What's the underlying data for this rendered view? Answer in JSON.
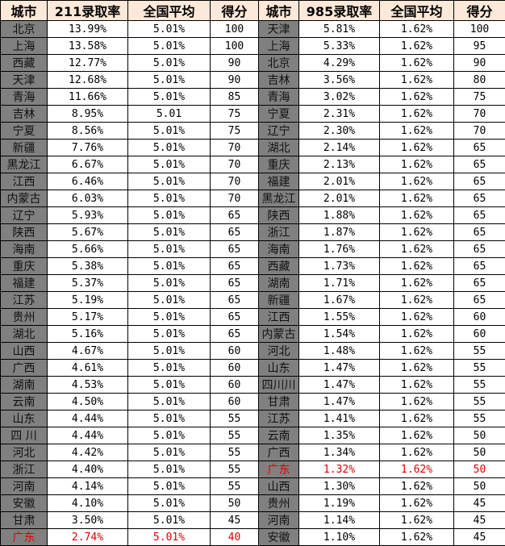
{
  "headers": [
    "城市",
    "211录取率",
    "全国平均",
    "得分",
    "城市",
    "985录取率",
    "全国平均",
    "得分"
  ],
  "highlight_color": "#e00000",
  "left": [
    [
      "北京",
      "13.99%",
      "5.01%",
      "100"
    ],
    [
      "上海",
      "13.58%",
      "5.01%",
      "100"
    ],
    [
      "西藏",
      "12.77%",
      "5.01%",
      "90"
    ],
    [
      "天津",
      "12.68%",
      "5.01%",
      "90"
    ],
    [
      "青海",
      "11.66%",
      "5.01%",
      "85"
    ],
    [
      "吉林",
      "8.95%",
      "5.01",
      "75"
    ],
    [
      "宁夏",
      "8.56%",
      "5.01%",
      "75"
    ],
    [
      "新疆",
      "7.76%",
      "5.01%",
      "70"
    ],
    [
      "黑龙江",
      "6.67%",
      "5.01%",
      "70"
    ],
    [
      "江西",
      "6.46%",
      "5.01%",
      "70"
    ],
    [
      "内蒙古",
      "6.03%",
      "5.01%",
      "70"
    ],
    [
      "辽宁",
      "5.93%",
      "5.01%",
      "65"
    ],
    [
      "陕西",
      "5.67%",
      "5.01%",
      "65"
    ],
    [
      "海南",
      "5.66%",
      "5.01%",
      "65"
    ],
    [
      "重庆",
      "5.38%",
      "5.01%",
      "65"
    ],
    [
      "福建",
      "5.37%",
      "5.01%",
      "65"
    ],
    [
      "江苏",
      "5.19%",
      "5.01%",
      "65"
    ],
    [
      "贵州",
      "5.17%",
      "5.01%",
      "65"
    ],
    [
      "湖北",
      "5.16%",
      "5.01%",
      "65"
    ],
    [
      "山西",
      "4.67%",
      "5.01%",
      "60"
    ],
    [
      "广西",
      "4.61%",
      "5.01%",
      "60"
    ],
    [
      "湖南",
      "4.53%",
      "5.01%",
      "60"
    ],
    [
      "云南",
      "4.50%",
      "5.01%",
      "60"
    ],
    [
      "山东",
      "4.44%",
      "5.01%",
      "55"
    ],
    [
      "四 川",
      "4.44%",
      "5.01%",
      "55"
    ],
    [
      "河北",
      "4.42%",
      "5.01%",
      "55"
    ],
    [
      "浙江",
      "4.40%",
      "5.01%",
      "55"
    ],
    [
      "河南",
      "4.14%",
      "5.01%",
      "55"
    ],
    [
      "安徽",
      "4.10%",
      "5.01%",
      "50"
    ],
    [
      "甘肃",
      "3.50%",
      "5.01%",
      "45"
    ],
    [
      "广东",
      "2.74%",
      "5.01%",
      "40"
    ]
  ],
  "right": [
    [
      "天津",
      "5.81%",
      "1.62%",
      "100"
    ],
    [
      "上海",
      "5.33%",
      "1.62%",
      "95"
    ],
    [
      "北京",
      "4.29%",
      "1.62%",
      "90"
    ],
    [
      "吉林",
      "3.56%",
      "1.62%",
      "80"
    ],
    [
      "青海",
      "3.02%",
      "1.62%",
      "75"
    ],
    [
      "宁夏",
      "2.31%",
      "1.62%",
      "70"
    ],
    [
      "辽宁",
      "2.30%",
      "1.62%",
      "70"
    ],
    [
      "湖北",
      "2.14%",
      "1.62%",
      "65"
    ],
    [
      "重庆",
      "2.13%",
      "1.62%",
      "65"
    ],
    [
      "福建",
      "2.01%",
      "1.62%",
      "65"
    ],
    [
      "黑龙江",
      "2.01%",
      "1.62%",
      "65"
    ],
    [
      "陕西",
      "1.88%",
      "1.62%",
      "65"
    ],
    [
      "浙江",
      "1.87%",
      "1.62%",
      "65"
    ],
    [
      "海南",
      "1.76%",
      "1.62%",
      "65"
    ],
    [
      "西藏",
      "1.73%",
      "1.62%",
      "65"
    ],
    [
      "湖南",
      "1.71%",
      "1.62%",
      "65"
    ],
    [
      "新疆",
      "1.67%",
      "1.62%",
      "65"
    ],
    [
      "江西",
      "1.55%",
      "1.62%",
      "60"
    ],
    [
      "内蒙古",
      "1.54%",
      "1.62%",
      "60"
    ],
    [
      "河北",
      "1.48%",
      "1.62%",
      "55"
    ],
    [
      "山东",
      "1.47%",
      "1.62%",
      "55"
    ],
    [
      "四川川",
      "1.47%",
      "1.62%",
      "55"
    ],
    [
      "甘肃",
      "1.47%",
      "1.62%",
      "55"
    ],
    [
      "江苏",
      "1.41%",
      "1.62%",
      "55"
    ],
    [
      "云南",
      "1.35%",
      "1.62%",
      "50"
    ],
    [
      "广西",
      "1.34%",
      "1.62%",
      "50"
    ],
    [
      "广东",
      "1.32%",
      "1.62%",
      "50"
    ],
    [
      "山西",
      "1.30%",
      "1.62%",
      "50"
    ],
    [
      "贵州",
      "1.19%",
      "1.62%",
      "45"
    ],
    [
      "河南",
      "1.14%",
      "1.62%",
      "45"
    ],
    [
      "安徽",
      "1.10%",
      "1.62%",
      "45"
    ]
  ],
  "highlighted_city": "广东"
}
